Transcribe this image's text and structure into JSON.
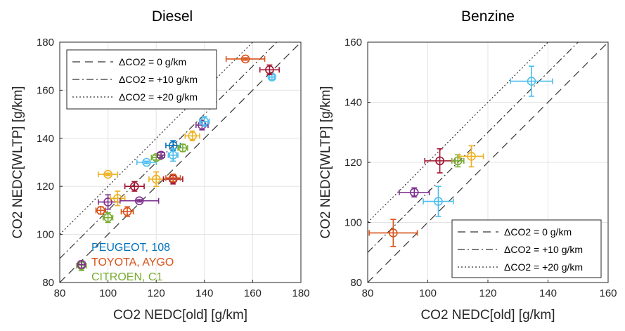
{
  "chart_data": [
    {
      "type": "scatter",
      "title": "Diesel",
      "xlabel": "CO2 NEDC[old] [g/km]",
      "ylabel": "CO2 NEDC[WLTP] [g/km]",
      "xlim": [
        80,
        180
      ],
      "ylim": [
        80,
        180
      ],
      "xticks": [
        "80",
        "100",
        "120",
        "140",
        "160",
        "180"
      ],
      "yticks": [
        "80",
        "100",
        "120",
        "140",
        "160",
        "180"
      ],
      "grid": true,
      "legend_placement": "top-left",
      "reference_lines": [
        {
          "label": "ΔCO2 = 0 g/km",
          "offset": 0,
          "style": "dashed"
        },
        {
          "label": "ΔCO2 = +10 g/km",
          "offset": 10,
          "style": "dashdot"
        },
        {
          "label": "ΔCO2 = +20 g/km",
          "offset": 20,
          "style": "dotted"
        }
      ],
      "series_labels": [
        {
          "text": "PEUGEOT, 108",
          "color": "#0072BD"
        },
        {
          "text": "TOYOTA, AYGO",
          "color": "#D95319"
        },
        {
          "text": "CITROEN, C1",
          "color": "#77AC30"
        }
      ],
      "points": [
        {
          "x": 89,
          "y": 87,
          "xerr": 2,
          "yerr": 2,
          "color": "#77AC30"
        },
        {
          "x": 89,
          "y": 87.5,
          "xerr": 1.5,
          "yerr": 1.5,
          "color": "#7E2F8E"
        },
        {
          "x": 97,
          "y": 110,
          "xerr": 2,
          "yerr": 1.5,
          "color": "#D95319"
        },
        {
          "x": 100,
          "y": 107,
          "xerr": 2,
          "yerr": 2,
          "color": "#77AC30"
        },
        {
          "x": 100,
          "y": 113.5,
          "xerr": 4,
          "yerr": 3,
          "color": "#7E2F8E"
        },
        {
          "x": 100,
          "y": 125,
          "xerr": 4,
          "yerr": 0.5,
          "color": "#EDB120"
        },
        {
          "x": 104,
          "y": 115,
          "xerr": 3,
          "yerr": 3,
          "color": "#EDB120"
        },
        {
          "x": 108,
          "y": 109.5,
          "xerr": 2.5,
          "yerr": 2,
          "color": "#D95319"
        },
        {
          "x": 111,
          "y": 120,
          "xerr": 4,
          "yerr": 2,
          "color": "#A2142F"
        },
        {
          "x": 113,
          "y": 114,
          "xerr": 8,
          "yerr": 0.5,
          "color": "#7E2F8E"
        },
        {
          "x": 116,
          "y": 130,
          "xerr": 4,
          "yerr": 0.5,
          "color": "#4DBEEE"
        },
        {
          "x": 120,
          "y": 123,
          "xerr": 3,
          "yerr": 3,
          "color": "#EDB120"
        },
        {
          "x": 120,
          "y": 132,
          "xerr": 2,
          "yerr": 1,
          "color": "#77AC30"
        },
        {
          "x": 122,
          "y": 133,
          "xerr": 1.5,
          "yerr": 1,
          "color": "#7E2F8E"
        },
        {
          "x": 127,
          "y": 123,
          "xerr": 4,
          "yerr": 2,
          "color": "#A2142F"
        },
        {
          "x": 127,
          "y": 123.5,
          "xerr": 3,
          "yerr": 1.5,
          "color": "#D95319"
        },
        {
          "x": 127,
          "y": 137,
          "xerr": 3,
          "yerr": 2,
          "color": "#0072BD"
        },
        {
          "x": 127,
          "y": 133,
          "xerr": 2,
          "yerr": 2.5,
          "color": "#4DBEEE"
        },
        {
          "x": 131,
          "y": 136,
          "xerr": 2,
          "yerr": 1.5,
          "color": "#77AC30"
        },
        {
          "x": 135,
          "y": 141,
          "xerr": 3,
          "yerr": 2,
          "color": "#EDB120"
        },
        {
          "x": 139,
          "y": 145.5,
          "xerr": 2.5,
          "yerr": 2,
          "color": "#7E2F8E"
        },
        {
          "x": 140,
          "y": 147,
          "xerr": 2,
          "yerr": 2,
          "color": "#4DBEEE"
        },
        {
          "x": 157,
          "y": 173,
          "xerr": 8,
          "yerr": 0.5,
          "color": "#D95319"
        },
        {
          "x": 168,
          "y": 165.5,
          "xerr": 1,
          "yerr": 1,
          "color": "#4DBEEE"
        },
        {
          "x": 167,
          "y": 168.5,
          "xerr": 4,
          "yerr": 2,
          "color": "#A2142F"
        }
      ]
    },
    {
      "type": "scatter",
      "title": "Benzine",
      "xlabel": "CO2 NEDC[old] [g/km]",
      "ylabel": "CO2 NEDC[WLTP] [g/km]",
      "xlim": [
        80,
        160
      ],
      "ylim": [
        80,
        160
      ],
      "xticks": [
        "80",
        "100",
        "120",
        "140",
        "160"
      ],
      "yticks": [
        "80",
        "100",
        "120",
        "140",
        "160"
      ],
      "grid": true,
      "legend_placement": "bottom-right",
      "reference_lines": [
        {
          "label": "ΔCO2 = 0 g/km",
          "offset": 0,
          "style": "dashed"
        },
        {
          "label": "ΔCO2 = +10 g/km",
          "offset": 10,
          "style": "dashdot"
        },
        {
          "label": "ΔCO2 = +20 g/km",
          "offset": 20,
          "style": "dotted"
        }
      ],
      "series_labels": [],
      "points": [
        {
          "x": 88.5,
          "y": 96.5,
          "xerr": 8,
          "yerr": 4.5,
          "color": "#D95319"
        },
        {
          "x": 95.5,
          "y": 110,
          "xerr": 5,
          "yerr": 1.5,
          "color": "#7E2F8E"
        },
        {
          "x": 103.5,
          "y": 107,
          "xerr": 5,
          "yerr": 5,
          "color": "#4DBEEE"
        },
        {
          "x": 104,
          "y": 120.5,
          "xerr": 5,
          "yerr": 4,
          "color": "#A2142F"
        },
        {
          "x": 110,
          "y": 120.5,
          "xerr": 2,
          "yerr": 2,
          "color": "#77AC30"
        },
        {
          "x": 114.5,
          "y": 122,
          "xerr": 4,
          "yerr": 3.5,
          "color": "#EDB120"
        },
        {
          "x": 134.5,
          "y": 147,
          "xerr": 7,
          "yerr": 5,
          "color": "#4DBEEE"
        }
      ]
    }
  ]
}
